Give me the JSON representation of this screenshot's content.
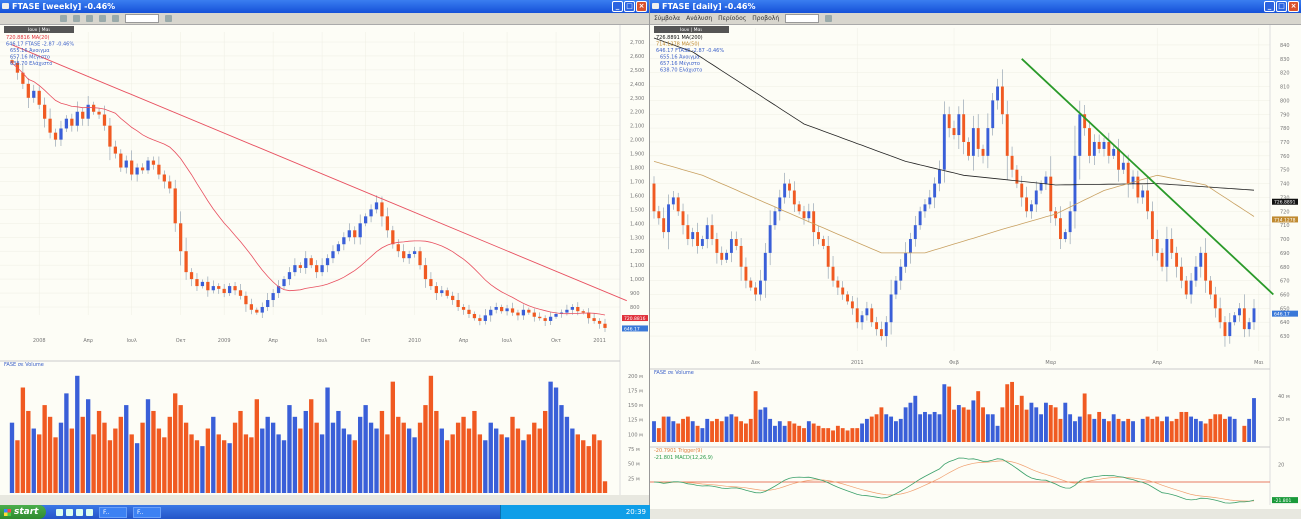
{
  "left": {
    "title": "FTASE [weekly] -0.46%",
    "timeframe": "Ιουν | Μαι",
    "legend": [
      {
        "text": "720.8816 MA(20)",
        "color": "#e0303a"
      },
      {
        "text": "646.17 FTASE -2.87 -0.46%",
        "color": "#3a5fc8"
      },
      {
        "text": "655.16 Άνοιγμα",
        "color": "#3a5fc8"
      },
      {
        "text": "657.16 Μέγιστο",
        "color": "#3a5fc8"
      },
      {
        "text": "638.70 Ελάχιστο",
        "color": "#3a5fc8"
      }
    ],
    "volume_label": "FASE σε Volume",
    "price_tags": [
      {
        "text": "720.8816",
        "color": "#e0303a",
        "value": 720.88
      },
      {
        "text": "646.17",
        "color": "#3a78d8",
        "value": 646.17
      }
    ]
  },
  "right": {
    "title": "FTASE [daily] -0.46%",
    "menu": [
      "Σύμβολα",
      "Ανάλυση",
      "Περίοδος",
      "Προβολή"
    ],
    "timeframe": "Ιουν | Μαι",
    "legend": [
      {
        "text": "726.8891 MA(200)",
        "color": "#111111"
      },
      {
        "text": "714.1278 MA(50)",
        "color": "#c08a30"
      },
      {
        "text": "646.17 FTASE -2.87 -0.46%",
        "color": "#3a5fc8"
      },
      {
        "text": "655.16 Άνοιγμα",
        "color": "#3a5fc8"
      },
      {
        "text": "657.16 Μέγιστο",
        "color": "#3a5fc8"
      },
      {
        "text": "638.70 Ελάχιστο",
        "color": "#3a5fc8"
      }
    ],
    "volume_label": "FASE σε Volume",
    "macd_legend": [
      {
        "text": "-20.7901 Trigger(9)",
        "color": "#e08040"
      },
      {
        "text": "-21.801 MACD(12,26,9)",
        "color": "#2a9a4a"
      }
    ],
    "price_tags": [
      {
        "text": "726.8891",
        "color": "#111111",
        "value": 726.89
      },
      {
        "text": "714.1278",
        "color": "#c08a30",
        "value": 714.13
      },
      {
        "text": "646.17",
        "color": "#3a78d8",
        "value": 646.17
      }
    ],
    "macd_tag": {
      "text": "-21.801",
      "color": "#1a9a3a"
    }
  },
  "taskbar": {
    "start": "start",
    "tasks": [
      "F..",
      "F.."
    ],
    "clock": "20:39"
  },
  "colors": {
    "up": "#3a5fd8",
    "down": "#f05a22",
    "ma_red": "#e85060",
    "ma200": "#222222",
    "ma50": "#c8a060",
    "trend": "#2a9a2a",
    "macd": "#3aa06a",
    "trigger": "#f0a070",
    "zero": "#e05030"
  },
  "chart_data": [
    {
      "type": "candlestick",
      "name": "weekly",
      "ylim": [
        800,
        2700
      ],
      "yticks": [
        "2,700",
        "2,600",
        "2,500",
        "2,400",
        "2,300",
        "2,200",
        "2,100",
        "2,000",
        "1,900",
        "1,800",
        "1,700",
        "1,600",
        "1,500",
        "1,400",
        "1,300",
        "1,200",
        "1,100",
        "1,000",
        "900",
        "800"
      ],
      "xticks": [
        "2008",
        "Απρ",
        "Ιουλ",
        "Οκτ",
        "2009",
        "Απρ",
        "Ιουλ",
        "Οκτ",
        "2010",
        "Απρ",
        "Ιουλ",
        "Οκτ",
        "2011"
      ],
      "xtick_index": [
        5,
        14,
        22,
        31,
        39,
        48,
        57,
        65,
        74,
        83,
        91,
        100,
        108
      ],
      "close": [
        2550,
        2480,
        2400,
        2300,
        2350,
        2250,
        2150,
        2050,
        2000,
        2080,
        2150,
        2100,
        2200,
        2150,
        2250,
        2200,
        2180,
        2100,
        1950,
        1900,
        1800,
        1850,
        1750,
        1800,
        1780,
        1850,
        1820,
        1750,
        1700,
        1650,
        1400,
        1200,
        1050,
        1000,
        950,
        980,
        920,
        950,
        930,
        900,
        950,
        920,
        880,
        820,
        780,
        760,
        800,
        850,
        900,
        950,
        1000,
        1050,
        1100,
        1080,
        1150,
        1100,
        1050,
        1100,
        1150,
        1200,
        1250,
        1300,
        1350,
        1300,
        1400,
        1450,
        1500,
        1550,
        1450,
        1350,
        1250,
        1200,
        1150,
        1180,
        1200,
        1100,
        1000,
        950,
        900,
        920,
        880,
        850,
        800,
        780,
        750,
        720,
        700,
        740,
        780,
        800,
        770,
        790,
        760,
        740,
        780,
        760,
        730,
        720,
        700,
        730,
        750,
        760,
        780,
        800,
        770,
        760,
        720,
        700,
        680,
        650
      ],
      "ma_period": 20,
      "trendline": [
        [
          0,
          2680
        ],
        [
          113,
          845
        ]
      ],
      "volume": {
        "ticks": [
          "200 м",
          "175 м",
          "150 м",
          "125 м",
          "100 м",
          "75 м",
          "50 м",
          "25 м"
        ],
        "ylim": [
          0,
          215
        ],
        "values": [
          120,
          90,
          180,
          140,
          110,
          100,
          150,
          130,
          95,
          120,
          170,
          110,
          200,
          130,
          160,
          100,
          140,
          120,
          90,
          110,
          130,
          150,
          100,
          85,
          120,
          160,
          140,
          110,
          95,
          130,
          170,
          150,
          120,
          100,
          90,
          80,
          110,
          130,
          100,
          90,
          85,
          120,
          140,
          100,
          95,
          160,
          110,
          130,
          120,
          100,
          90,
          150,
          130,
          110,
          140,
          160,
          120,
          100,
          180,
          120,
          140,
          110,
          100,
          90,
          130,
          150,
          120,
          110,
          140,
          100,
          190,
          130,
          120,
          110,
          95,
          120,
          150,
          200,
          140,
          110,
          90,
          100,
          120,
          130,
          110,
          140,
          100,
          90,
          120,
          110,
          100,
          95,
          130,
          110,
          90,
          100,
          120,
          110,
          140,
          190,
          180,
          150,
          130,
          110,
          100,
          90,
          80,
          100,
          90,
          20
        ]
      }
    },
    {
      "type": "candlestick",
      "name": "daily",
      "ylim": [
        625,
        845
      ],
      "yticks": [
        "840",
        "830",
        "820",
        "810",
        "800",
        "790",
        "780",
        "770",
        "760",
        "750",
        "740",
        "730",
        "720",
        "710",
        "700",
        "690",
        "680",
        "670",
        "660",
        "650",
        "640",
        "630"
      ],
      "xticks": [
        "Δεκ",
        "2011",
        "Φεβ",
        "Μαρ",
        "Απρ",
        "Μαι"
      ],
      "xtick_index": [
        21,
        42,
        62,
        82,
        104,
        125
      ],
      "close": [
        720,
        715,
        705,
        725,
        730,
        720,
        710,
        700,
        705,
        695,
        700,
        710,
        700,
        690,
        685,
        690,
        700,
        695,
        680,
        670,
        665,
        660,
        670,
        690,
        710,
        720,
        730,
        740,
        735,
        725,
        720,
        715,
        720,
        705,
        700,
        695,
        680,
        670,
        665,
        660,
        655,
        650,
        640,
        645,
        650,
        640,
        635,
        630,
        640,
        660,
        670,
        680,
        690,
        700,
        710,
        720,
        725,
        730,
        740,
        750,
        790,
        780,
        775,
        790,
        770,
        760,
        780,
        765,
        760,
        780,
        800,
        810,
        790,
        760,
        750,
        740,
        730,
        720,
        725,
        735,
        740,
        745,
        720,
        715,
        700,
        705,
        720,
        760,
        790,
        780,
        760,
        770,
        765,
        770,
        760,
        765,
        750,
        755,
        740,
        745,
        730,
        735,
        720,
        700,
        690,
        680,
        700,
        690,
        680,
        670,
        660,
        670,
        680,
        690,
        670,
        660,
        650,
        640,
        630,
        640,
        645,
        650,
        635,
        640,
        650
      ],
      "ma200": [
        [
          0,
          845
        ],
        [
          8,
          835
        ],
        [
          31,
          783
        ],
        [
          52,
          756
        ],
        [
          64,
          746
        ],
        [
          83,
          739
        ],
        [
          104,
          740
        ],
        [
          125,
          735
        ]
      ],
      "ma50": [
        [
          0,
          756
        ],
        [
          10,
          746
        ],
        [
          31,
          714
        ],
        [
          47,
          690
        ],
        [
          56,
          690
        ],
        [
          72,
          707
        ],
        [
          83,
          718
        ],
        [
          93,
          735
        ],
        [
          104,
          746
        ],
        [
          114,
          739
        ],
        [
          125,
          714
        ]
      ],
      "trendline": [
        [
          76,
          830
        ],
        [
          128,
          660
        ]
      ],
      "volume": {
        "ticks": [
          "40 м",
          "20 м"
        ],
        "ylim": [
          0,
          58
        ],
        "values": [
          18,
          12,
          22,
          22,
          18,
          16,
          20,
          22,
          18,
          14,
          12,
          20,
          18,
          20,
          18,
          22,
          24,
          22,
          18,
          16,
          20,
          44,
          28,
          30,
          20,
          14,
          18,
          14,
          18,
          16,
          14,
          12,
          18,
          16,
          14,
          12,
          12,
          10,
          14,
          12,
          10,
          12,
          12,
          16,
          20,
          22,
          24,
          30,
          24,
          22,
          18,
          20,
          30,
          34,
          40,
          24,
          26,
          24,
          26,
          24,
          50,
          48,
          28,
          32,
          30,
          28,
          36,
          44,
          30,
          24,
          24,
          14,
          30,
          50,
          52,
          32,
          40,
          28,
          34,
          30,
          24,
          34,
          32,
          30,
          20,
          34,
          24,
          18,
          22,
          42,
          24,
          20,
          26,
          20,
          18,
          24,
          20,
          18,
          20,
          18,
          0,
          20,
          22,
          20,
          22,
          18,
          22,
          18,
          20,
          26,
          26,
          22,
          20,
          18,
          16,
          20,
          24,
          24,
          20,
          22,
          20,
          0,
          14,
          20,
          38,
          16,
          12
        ]
      },
      "macd": {
        "ticks": [
          "20"
        ],
        "params": [
          12,
          26,
          9
        ]
      }
    }
  ]
}
